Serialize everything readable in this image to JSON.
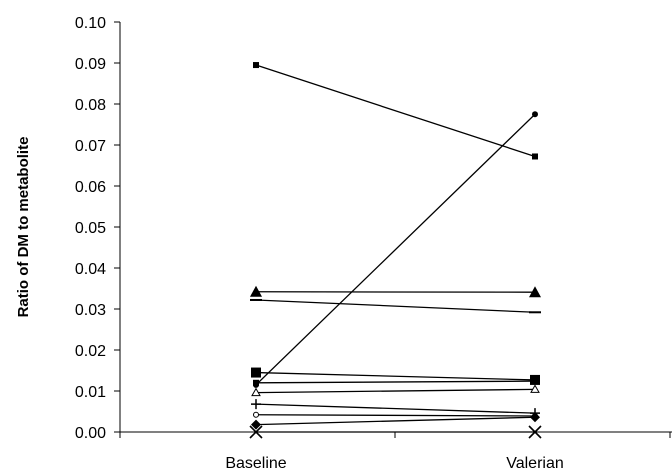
{
  "chart_data": {
    "type": "line",
    "title": "",
    "xlabel": "",
    "ylabel": "Ratio of DM to metabolite",
    "categories": [
      "Baseline",
      "Valerian"
    ],
    "ylim": [
      0,
      0.1
    ],
    "y_ticks": [
      "0.00",
      "0.01",
      "0.02",
      "0.03",
      "0.04",
      "0.05",
      "0.06",
      "0.07",
      "0.08",
      "0.09",
      "0.10"
    ],
    "grid": false,
    "legend": "none",
    "series": [
      {
        "marker": "small-square",
        "values": [
          0.0895,
          0.0672
        ]
      },
      {
        "marker": "small-circle",
        "values": [
          0.0115,
          0.0775
        ]
      },
      {
        "marker": "triangle",
        "values": [
          0.0342,
          0.0341
        ]
      },
      {
        "marker": "dash",
        "values": [
          0.0322,
          0.0292
        ]
      },
      {
        "marker": "square",
        "values": [
          0.0145,
          0.0127
        ]
      },
      {
        "marker": "small-square",
        "values": [
          0.012,
          0.0124
        ]
      },
      {
        "marker": "open-triangle",
        "values": [
          0.0096,
          0.0104
        ]
      },
      {
        "marker": "plus",
        "values": [
          0.0068,
          0.0046
        ]
      },
      {
        "marker": "open-circle",
        "values": [
          0.0042,
          0.0039
        ]
      },
      {
        "marker": "diamond",
        "values": [
          0.0018,
          0.0036
        ]
      },
      {
        "marker": "x",
        "values": [
          0.0,
          0.0
        ]
      }
    ]
  }
}
